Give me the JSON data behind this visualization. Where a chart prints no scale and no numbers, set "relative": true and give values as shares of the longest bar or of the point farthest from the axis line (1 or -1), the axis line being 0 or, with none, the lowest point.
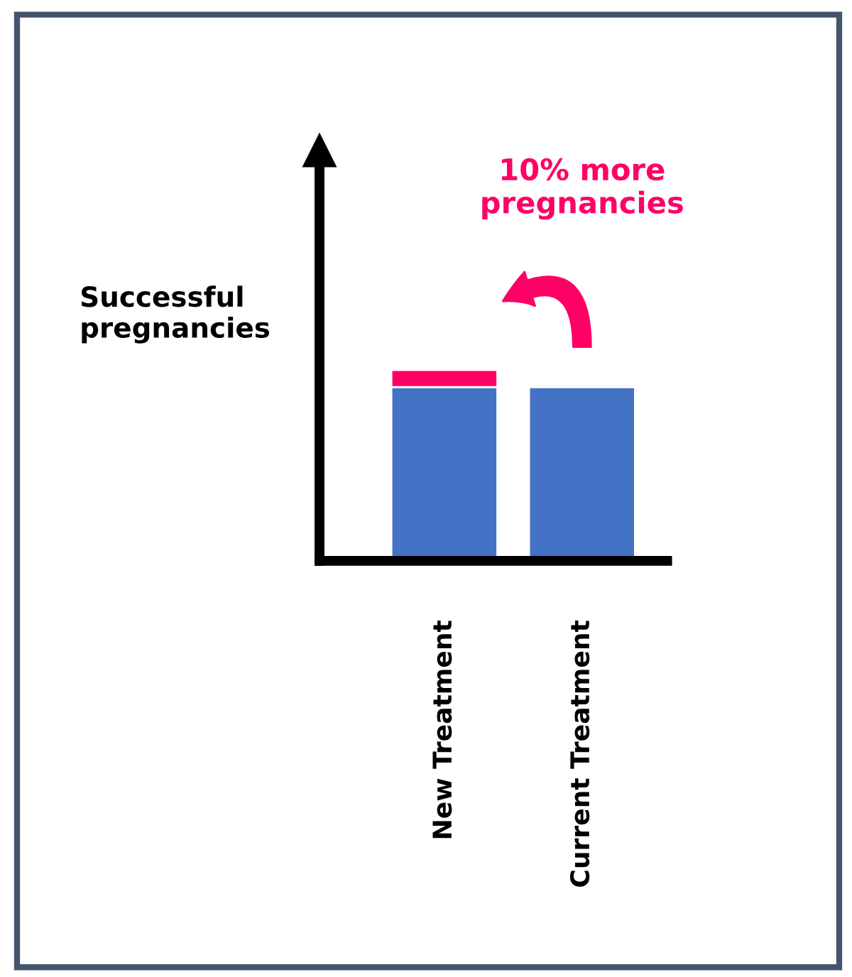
{
  "chart_data": {
    "type": "bar",
    "stacked": true,
    "relative": true,
    "categories": [
      "New Treatment",
      "Current Treatment"
    ],
    "series": [
      {
        "color": "#4472c4",
        "values": [
          0.91,
          0.91
        ]
      },
      {
        "color": "#ff0066",
        "values": [
          0.09,
          null
        ]
      }
    ],
    "ylabel": "Successful\npregnancies",
    "annotations": [
      "10% more\npregnancies"
    ],
    "legend": false,
    "grid": false
  }
}
